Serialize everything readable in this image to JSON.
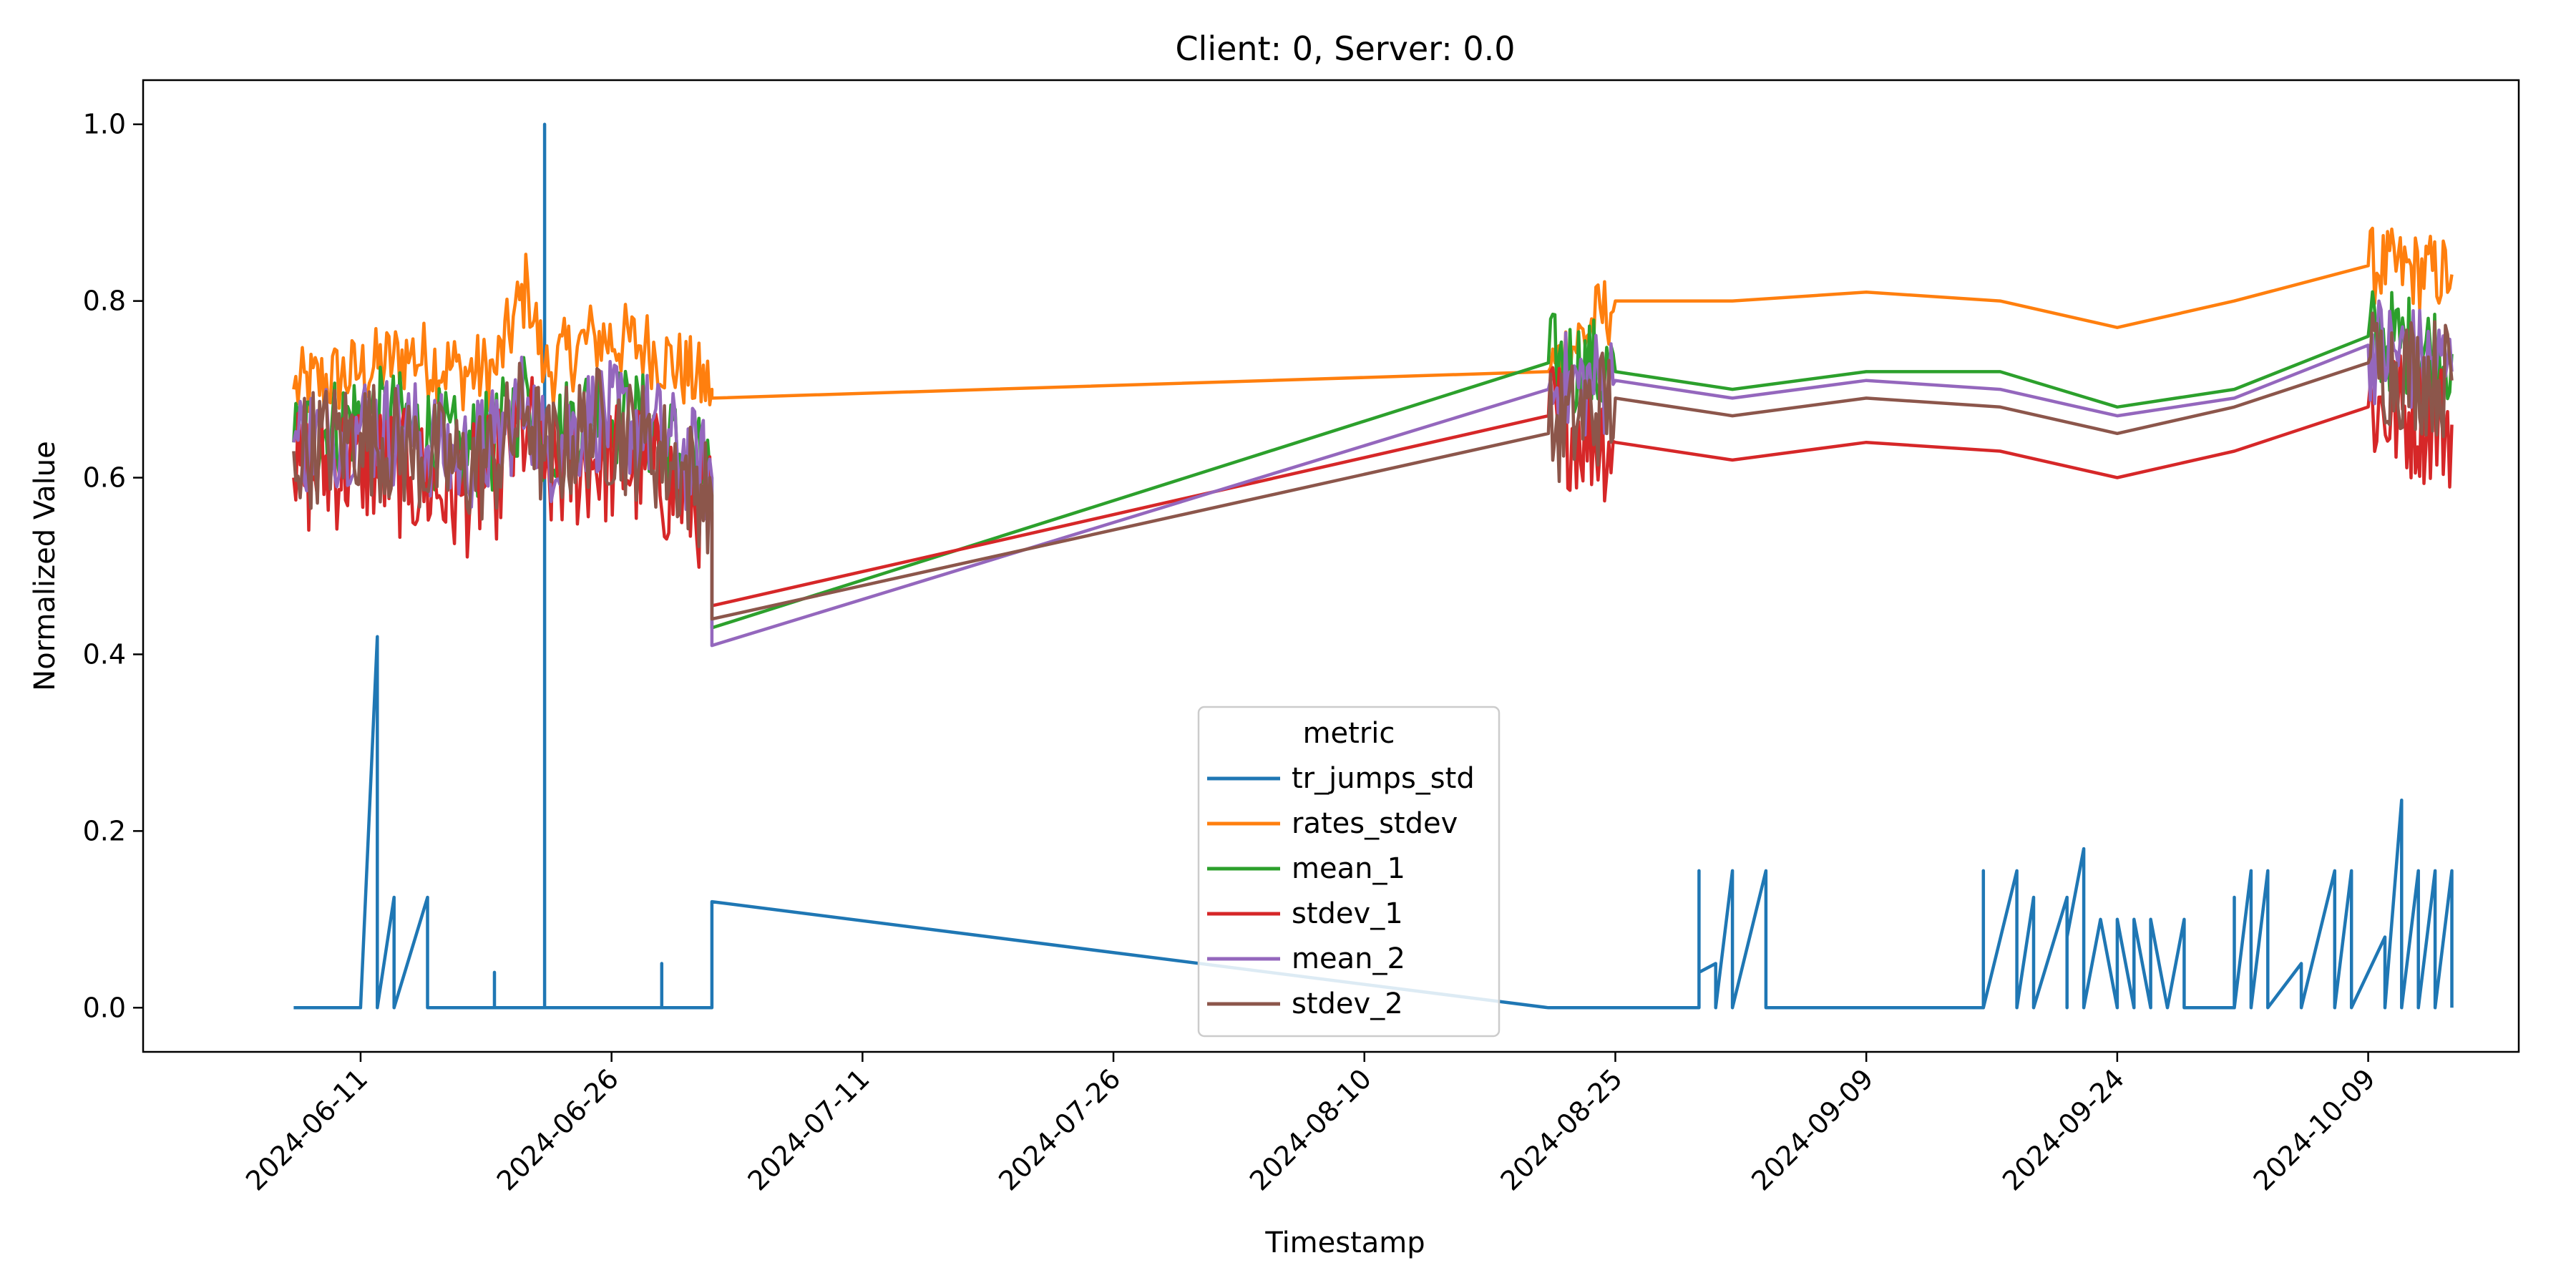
{
  "chart_data": {
    "type": "line",
    "title": "Client: 0, Server: 0.0",
    "xlabel": "Timestamp",
    "ylabel": "Normalized Value",
    "xlim": [
      "2024-05-29",
      "2024-10-18"
    ],
    "ylim": [
      -0.05,
      1.05
    ],
    "grid": false,
    "x_tick_labels": [
      "2024-06-11",
      "2024-06-26",
      "2024-07-11",
      "2024-07-26",
      "2024-08-10",
      "2024-08-25",
      "2024-09-09",
      "2024-09-24",
      "2024-10-09"
    ],
    "y_tick_labels": [
      "0.0",
      "0.2",
      "0.4",
      "0.6",
      "0.8",
      "1.0"
    ],
    "legend": {
      "title": "metric",
      "placement": "lower-center"
    },
    "series": [
      {
        "name": "tr_jumps_std",
        "color": "#1f77b4",
        "points": [
          [
            "2024-06-07",
            0.0
          ],
          [
            "2024-06-11",
            0.0
          ],
          [
            "2024-06-12",
            0.42
          ],
          [
            "2024-06-12",
            0.0
          ],
          [
            "2024-06-12",
            0.05
          ],
          [
            "2024-06-12",
            0.0
          ],
          [
            "2024-06-13",
            0.125
          ],
          [
            "2024-06-13",
            0.0
          ],
          [
            "2024-06-15",
            0.125
          ],
          [
            "2024-06-15",
            0.0
          ],
          [
            "2024-06-19",
            0.0
          ],
          [
            "2024-06-19",
            0.04
          ],
          [
            "2024-06-19",
            0.0
          ],
          [
            "2024-06-22",
            0.0
          ],
          [
            "2024-06-22",
            1.0
          ],
          [
            "2024-06-22",
            0.0
          ],
          [
            "2024-06-29",
            0.0
          ],
          [
            "2024-06-29",
            0.04
          ],
          [
            "2024-06-29",
            0.05
          ],
          [
            "2024-06-29",
            0.0
          ],
          [
            "2024-07-02",
            0.0
          ],
          [
            "2024-07-02",
            0.12
          ],
          [
            "2024-08-21",
            0.0
          ],
          [
            "2024-08-30",
            0.0
          ],
          [
            "2024-08-30",
            0.155
          ],
          [
            "2024-08-30",
            0.04
          ],
          [
            "2024-08-31",
            0.05
          ],
          [
            "2024-08-31",
            0.0
          ],
          [
            "2024-09-01",
            0.155
          ],
          [
            "2024-09-01",
            0.0
          ],
          [
            "2024-09-03",
            0.155
          ],
          [
            "2024-09-03",
            0.0
          ],
          [
            "2024-09-16",
            0.0
          ],
          [
            "2024-09-16",
            0.155
          ],
          [
            "2024-09-16",
            0.0
          ],
          [
            "2024-09-18",
            0.155
          ],
          [
            "2024-09-18",
            0.0
          ],
          [
            "2024-09-19",
            0.125
          ],
          [
            "2024-09-19",
            0.0
          ],
          [
            "2024-09-21",
            0.125
          ],
          [
            "2024-09-21",
            0.0
          ],
          [
            "2024-09-21",
            0.08
          ],
          [
            "2024-09-22",
            0.18
          ],
          [
            "2024-09-22",
            0.0
          ],
          [
            "2024-09-23",
            0.1
          ],
          [
            "2024-09-24",
            0.0
          ],
          [
            "2024-09-24",
            0.1
          ],
          [
            "2024-09-25",
            0.0
          ],
          [
            "2024-09-25",
            0.1
          ],
          [
            "2024-09-26",
            0.0
          ],
          [
            "2024-09-26",
            0.1
          ],
          [
            "2024-09-27",
            0.0
          ],
          [
            "2024-09-28",
            0.1
          ],
          [
            "2024-09-28",
            0.0
          ],
          [
            "2024-10-01",
            0.0
          ],
          [
            "2024-10-01",
            0.125
          ],
          [
            "2024-10-01",
            0.0
          ],
          [
            "2024-10-02",
            0.155
          ],
          [
            "2024-10-02",
            0.0
          ],
          [
            "2024-10-03",
            0.155
          ],
          [
            "2024-10-03",
            0.0
          ],
          [
            "2024-10-05",
            0.05
          ],
          [
            "2024-10-05",
            0.0
          ],
          [
            "2024-10-07",
            0.155
          ],
          [
            "2024-10-07",
            0.0
          ],
          [
            "2024-10-08",
            0.155
          ],
          [
            "2024-10-08",
            0.0
          ],
          [
            "2024-10-10",
            0.08
          ],
          [
            "2024-10-10",
            0.0
          ],
          [
            "2024-10-11",
            0.235
          ],
          [
            "2024-10-11",
            0.0
          ],
          [
            "2024-10-12",
            0.155
          ],
          [
            "2024-10-12",
            0.0
          ],
          [
            "2024-10-13",
            0.155
          ],
          [
            "2024-10-13",
            0.0
          ],
          [
            "2024-10-14",
            0.155
          ],
          [
            "2024-10-14",
            0.0
          ]
        ]
      },
      {
        "name": "rates_stdev",
        "color": "#ff7f0e",
        "points": [
          [
            "2024-06-07",
            0.7
          ],
          [
            "2024-06-11",
            0.72
          ],
          [
            "2024-06-14",
            0.74
          ],
          [
            "2024-06-17",
            0.72
          ],
          [
            "2024-06-19",
            0.72
          ],
          [
            "2024-06-21",
            0.82
          ],
          [
            "2024-06-22",
            0.72
          ],
          [
            "2024-06-25",
            0.76
          ],
          [
            "2024-06-28",
            0.75
          ],
          [
            "2024-07-02",
            0.7
          ],
          [
            "2024-07-02",
            0.69
          ],
          [
            "2024-08-21",
            0.72
          ],
          [
            "2024-08-25",
            0.8
          ],
          [
            "2024-09-01",
            0.8
          ],
          [
            "2024-09-09",
            0.81
          ],
          [
            "2024-09-17",
            0.8
          ],
          [
            "2024-09-24",
            0.77
          ],
          [
            "2024-10-01",
            0.8
          ],
          [
            "2024-10-09",
            0.84
          ],
          [
            "2024-10-14",
            0.83
          ]
        ]
      },
      {
        "name": "mean_1",
        "color": "#2ca02c",
        "points": [
          [
            "2024-06-07",
            0.64
          ],
          [
            "2024-06-11",
            0.67
          ],
          [
            "2024-06-14",
            0.66
          ],
          [
            "2024-06-17",
            0.63
          ],
          [
            "2024-06-19",
            0.64
          ],
          [
            "2024-06-21",
            0.7
          ],
          [
            "2024-06-22",
            0.64
          ],
          [
            "2024-06-25",
            0.68
          ],
          [
            "2024-06-28",
            0.66
          ],
          [
            "2024-07-02",
            0.6
          ],
          [
            "2024-07-02",
            0.43
          ],
          [
            "2024-08-21",
            0.73
          ],
          [
            "2024-08-25",
            0.72
          ],
          [
            "2024-09-01",
            0.7
          ],
          [
            "2024-09-09",
            0.72
          ],
          [
            "2024-09-17",
            0.72
          ],
          [
            "2024-09-24",
            0.68
          ],
          [
            "2024-10-01",
            0.7
          ],
          [
            "2024-10-09",
            0.76
          ],
          [
            "2024-10-14",
            0.74
          ]
        ]
      },
      {
        "name": "stdev_1",
        "color": "#d62728",
        "points": [
          [
            "2024-06-07",
            0.6
          ],
          [
            "2024-06-11",
            0.62
          ],
          [
            "2024-06-14",
            0.6
          ],
          [
            "2024-06-17",
            0.58
          ],
          [
            "2024-06-19",
            0.6
          ],
          [
            "2024-06-21",
            0.66
          ],
          [
            "2024-06-22",
            0.6
          ],
          [
            "2024-06-25",
            0.62
          ],
          [
            "2024-06-28",
            0.61
          ],
          [
            "2024-07-02",
            0.56
          ],
          [
            "2024-07-02",
            0.455
          ],
          [
            "2024-08-21",
            0.67
          ],
          [
            "2024-08-25",
            0.64
          ],
          [
            "2024-09-01",
            0.62
          ],
          [
            "2024-09-09",
            0.64
          ],
          [
            "2024-09-17",
            0.63
          ],
          [
            "2024-09-24",
            0.6
          ],
          [
            "2024-10-01",
            0.63
          ],
          [
            "2024-10-09",
            0.68
          ],
          [
            "2024-10-14",
            0.66
          ]
        ]
      },
      {
        "name": "mean_2",
        "color": "#9467bd",
        "points": [
          [
            "2024-06-07",
            0.64
          ],
          [
            "2024-06-11",
            0.66
          ],
          [
            "2024-06-14",
            0.65
          ],
          [
            "2024-06-17",
            0.62
          ],
          [
            "2024-06-19",
            0.64
          ],
          [
            "2024-06-21",
            0.69
          ],
          [
            "2024-06-22",
            0.63
          ],
          [
            "2024-06-25",
            0.67
          ],
          [
            "2024-06-28",
            0.66
          ],
          [
            "2024-07-02",
            0.6
          ],
          [
            "2024-07-02",
            0.41
          ],
          [
            "2024-08-21",
            0.7
          ],
          [
            "2024-08-25",
            0.71
          ],
          [
            "2024-09-01",
            0.69
          ],
          [
            "2024-09-09",
            0.71
          ],
          [
            "2024-09-17",
            0.7
          ],
          [
            "2024-09-24",
            0.67
          ],
          [
            "2024-10-01",
            0.69
          ],
          [
            "2024-10-09",
            0.75
          ],
          [
            "2024-10-14",
            0.72
          ]
        ]
      },
      {
        "name": "stdev_2",
        "color": "#8c564b",
        "points": [
          [
            "2024-06-07",
            0.63
          ],
          [
            "2024-06-11",
            0.65
          ],
          [
            "2024-06-14",
            0.63
          ],
          [
            "2024-06-17",
            0.61
          ],
          [
            "2024-06-19",
            0.62
          ],
          [
            "2024-06-21",
            0.68
          ],
          [
            "2024-06-22",
            0.62
          ],
          [
            "2024-06-25",
            0.66
          ],
          [
            "2024-06-28",
            0.64
          ],
          [
            "2024-07-02",
            0.58
          ],
          [
            "2024-07-02",
            0.44
          ],
          [
            "2024-08-21",
            0.65
          ],
          [
            "2024-08-25",
            0.69
          ],
          [
            "2024-09-01",
            0.67
          ],
          [
            "2024-09-09",
            0.69
          ],
          [
            "2024-09-17",
            0.68
          ],
          [
            "2024-09-24",
            0.65
          ],
          [
            "2024-10-01",
            0.68
          ],
          [
            "2024-10-09",
            0.73
          ],
          [
            "2024-10-14",
            0.71
          ]
        ]
      }
    ]
  }
}
